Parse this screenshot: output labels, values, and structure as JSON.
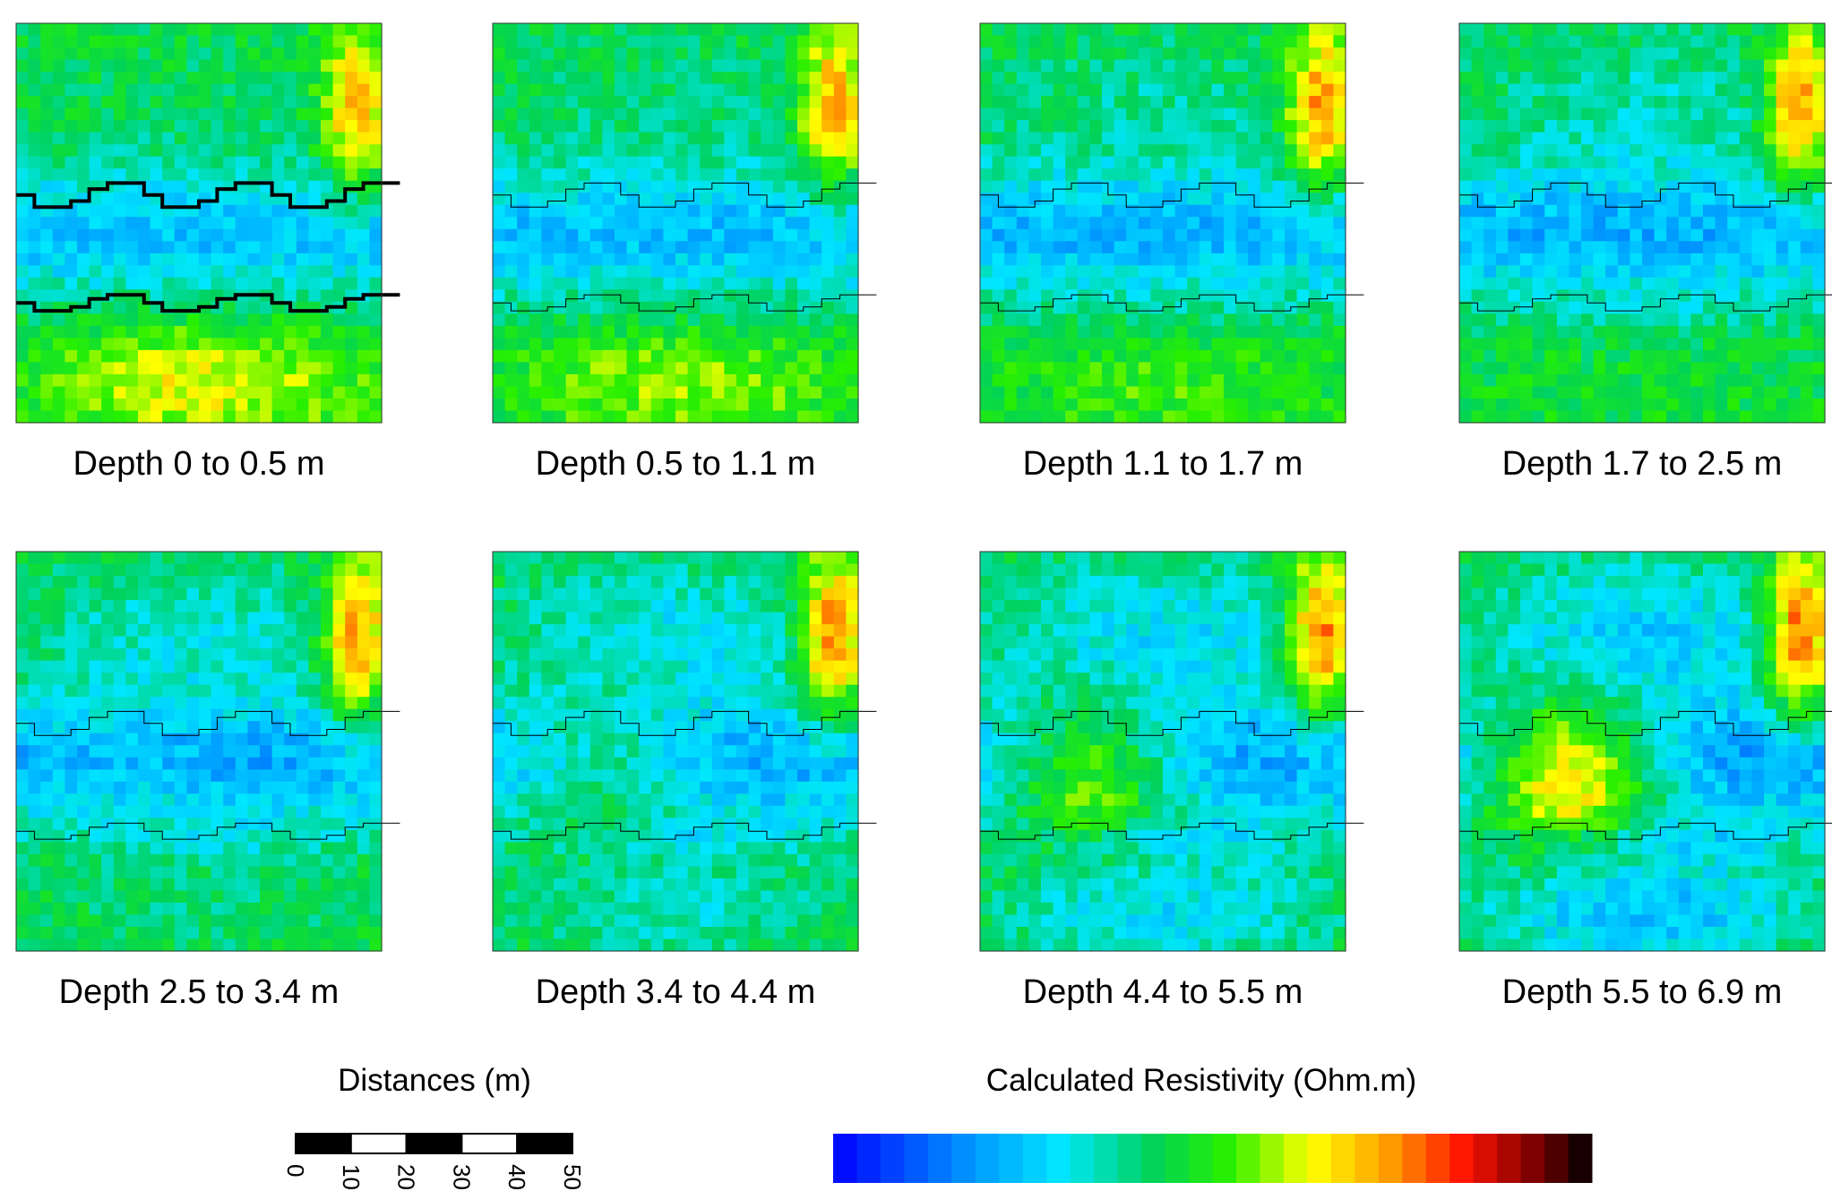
{
  "panels": [
    {
      "label": "Depth 0 to 0.5 m"
    },
    {
      "label": "Depth 0.5 to 1.1 m"
    },
    {
      "label": "Depth 1.1 to 1.7 m"
    },
    {
      "label": "Depth 1.7 to 2.5 m"
    },
    {
      "label": "Depth 2.5 to 3.4 m"
    },
    {
      "label": "Depth 3.4 to 4.4 m"
    },
    {
      "label": "Depth 4.4 to 5.5 m"
    },
    {
      "label": "Depth 5.5 to 6.9 m"
    }
  ],
  "scale_bar": {
    "title": "Distances (m)",
    "ticks": [
      0,
      10,
      20,
      30,
      40,
      50
    ]
  },
  "colorbar": {
    "title": "Calculated Resistivity (Ohm.m)"
  }
}
